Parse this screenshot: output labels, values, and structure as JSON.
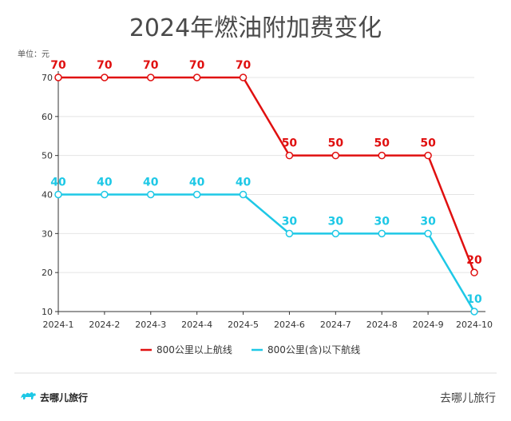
{
  "chart_data": {
    "type": "line",
    "title": "2024年燃油附加费变化",
    "unit_label": "单位：元",
    "categories": [
      "2024-1",
      "2024-2",
      "2024-3",
      "2024-4",
      "2024-5",
      "2024-6",
      "2024-7",
      "2024-8",
      "2024-9",
      "2024-10"
    ],
    "ylim": [
      10,
      70
    ],
    "yticks": [
      10,
      20,
      30,
      40,
      50,
      60,
      70
    ],
    "grid": "horizontal",
    "legend_position": "bottom",
    "series": [
      {
        "name": "800公里以上航线",
        "color": "#e01010",
        "values": [
          70,
          70,
          70,
          70,
          70,
          50,
          50,
          50,
          50,
          20
        ]
      },
      {
        "name": "800公里(含)以下航线",
        "color": "#1ec8e6",
        "values": [
          40,
          40,
          40,
          40,
          40,
          30,
          30,
          30,
          30,
          10
        ]
      }
    ]
  },
  "footer": {
    "left_brand": "去哪儿旅行",
    "right_brand": "去哪儿旅行"
  },
  "icons": {
    "brand_logo": "camel-icon"
  }
}
